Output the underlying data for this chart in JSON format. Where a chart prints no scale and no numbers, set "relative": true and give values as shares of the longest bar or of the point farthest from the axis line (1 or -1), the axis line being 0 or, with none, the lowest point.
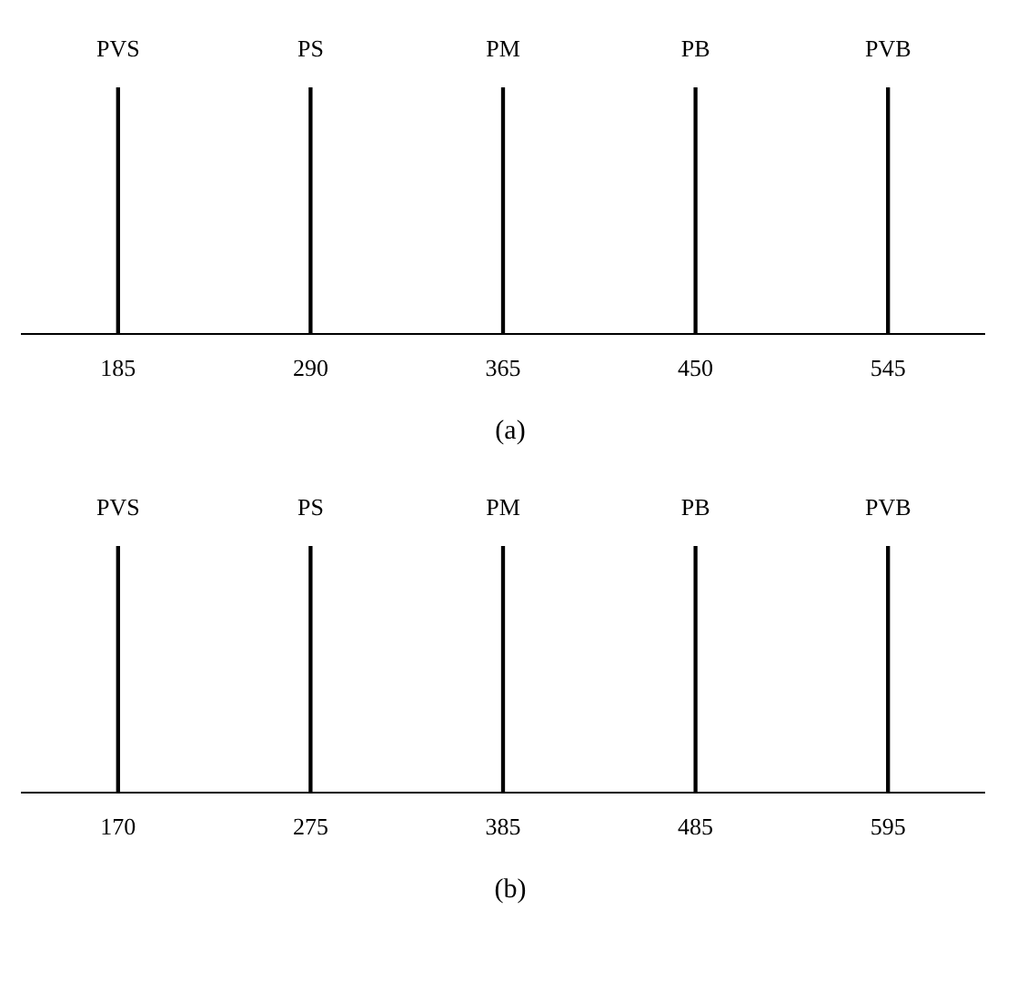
{
  "chart_data": [
    {
      "type": "bar",
      "relative": true,
      "categories": [
        "185",
        "290",
        "365",
        "450",
        "545"
      ],
      "values": [
        1,
        1,
        1,
        1,
        1
      ],
      "color": "#000000",
      "grid": false,
      "legend": false,
      "annotations": [
        {
          "text": "PVS",
          "x": "185",
          "y": 1
        },
        {
          "text": "PS",
          "x": "290",
          "y": 1
        },
        {
          "text": "PM",
          "x": "365",
          "y": 1
        },
        {
          "text": "PB",
          "x": "450",
          "y": 1
        },
        {
          "text": "PVB",
          "x": "545",
          "y": 1
        },
        "(a)"
      ]
    },
    {
      "type": "bar",
      "relative": true,
      "categories": [
        "170",
        "275",
        "385",
        "485",
        "595"
      ],
      "values": [
        1,
        1,
        1,
        1,
        1
      ],
      "color": "#000000",
      "grid": false,
      "legend": false,
      "annotations": [
        {
          "text": "PVS",
          "x": "170",
          "y": 1
        },
        {
          "text": "PS",
          "x": "275",
          "y": 1
        },
        {
          "text": "PM",
          "x": "385",
          "y": 1
        },
        {
          "text": "PB",
          "x": "485",
          "y": 1
        },
        {
          "text": "PVB",
          "x": "595",
          "y": 1
        },
        "(b)"
      ]
    }
  ]
}
